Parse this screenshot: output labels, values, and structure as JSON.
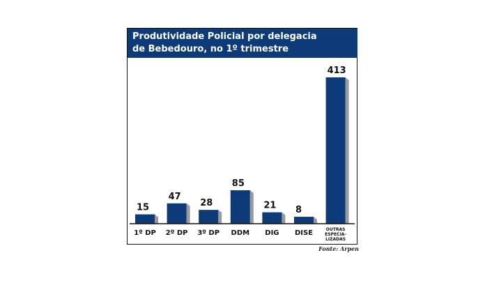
{
  "chart_data": {
    "type": "bar",
    "title": "Produtividade Policial por delegacia de Bebedouro, no 1º trimestre",
    "title_lines": [
      "Produtividade Policial por delegacia",
      "de Bebedouro, no 1º trimestre"
    ],
    "categories": [
      "1º DP",
      "2º DP",
      "3º DP",
      "DDM",
      "DIG",
      "DISE",
      "OUTRAS ESPECIA- LIZADAS"
    ],
    "category_lines": [
      [
        "1º DP"
      ],
      [
        "2º DP"
      ],
      [
        "3º DP"
      ],
      [
        "DDM"
      ],
      [
        "DIG"
      ],
      [
        "DISE"
      ],
      [
        "OUTRAS",
        "ESPECIA-",
        "LIZADAS"
      ]
    ],
    "values": [
      15,
      47,
      28,
      85,
      21,
      8,
      413
    ],
    "data_labels": [
      "15",
      "47",
      "28",
      "85",
      "21",
      "8",
      "413"
    ],
    "xlabel": "",
    "ylabel": "",
    "ylim": [
      0,
      413
    ],
    "grid": false,
    "source": "Fonte: Arpen",
    "colors": {
      "bar": "#0d3a78",
      "shadow": "#9a9a9a",
      "title_bg": "#0d3a78"
    }
  }
}
